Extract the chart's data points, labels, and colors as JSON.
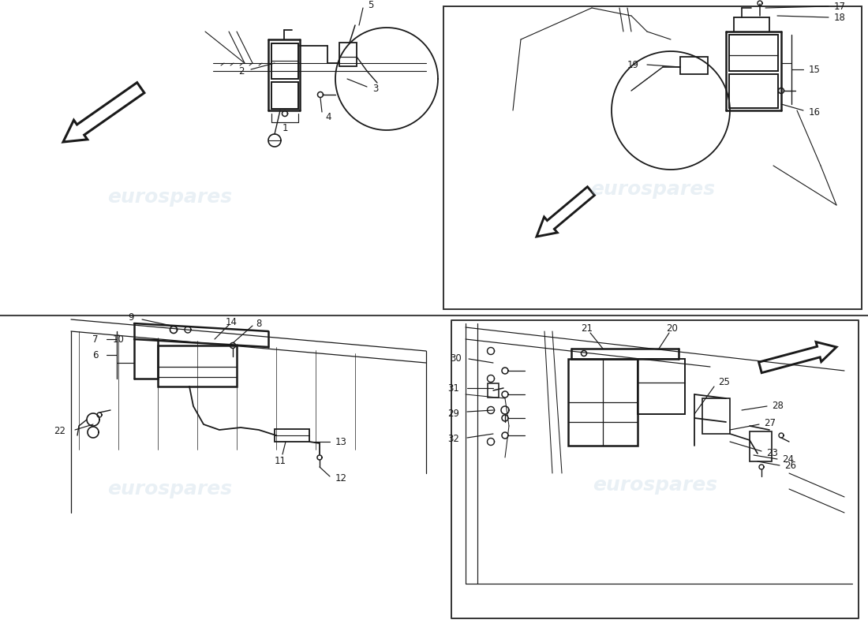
{
  "background_color": "#ffffff",
  "line_color": "#1a1a1a",
  "watermark_color": "#b8cfe0",
  "watermark_text": "eurospares",
  "panel_border_color": "#333333",
  "divider_color": "#444444",
  "lw_main": 1.4,
  "lw_thick": 1.8,
  "lw_thin": 0.9,
  "lw_leader": 0.85,
  "arrow_lw": 2.2,
  "font_size_label": 8.5
}
